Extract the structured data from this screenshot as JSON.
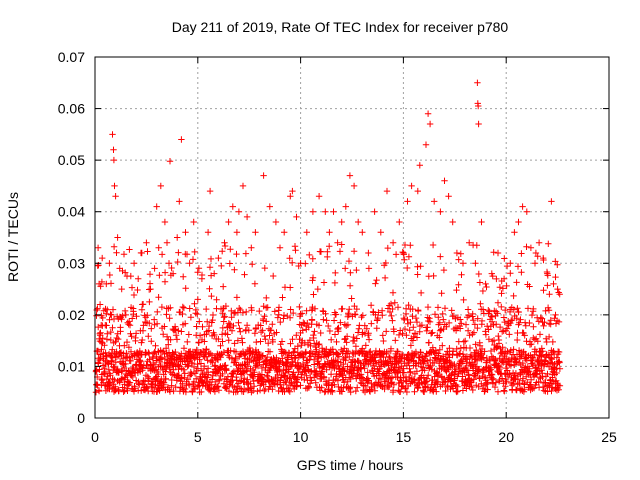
{
  "chart_data": {
    "type": "scatter",
    "title": "Day 211 of 2019, Rate Of TEC Index for receiver p780",
    "xlabel": "GPS time / hours",
    "ylabel": "ROTI / TECUs",
    "xlim": [
      0,
      25
    ],
    "ylim": [
      0,
      0.07
    ],
    "xticks": [
      0,
      5,
      10,
      15,
      20,
      25
    ],
    "yticks": [
      0,
      0.01,
      0.02,
      0.03,
      0.04,
      0.05,
      0.06,
      0.07
    ],
    "grid": true,
    "marker": "+",
    "colors": {
      "points": "#ff0000",
      "grid": "#a0a0a0",
      "axis": "#000000"
    },
    "series": [
      {
        "points": [
          [
            0.05,
            0.005
          ],
          [
            0.1,
            0.013
          ],
          [
            0.15,
            0.033
          ],
          [
            0.2,
            0.026
          ],
          [
            0.25,
            0.022
          ],
          [
            0.3,
            0.018
          ],
          [
            0.35,
            0.031
          ],
          [
            0.4,
            0.012
          ],
          [
            0.5,
            0.018
          ],
          [
            0.55,
            0.026
          ],
          [
            0.6,
            0.021
          ],
          [
            0.7,
            0.03
          ],
          [
            0.8,
            0.02
          ],
          [
            0.85,
            0.055
          ],
          [
            0.9,
            0.052
          ],
          [
            0.92,
            0.05
          ],
          [
            0.95,
            0.045
          ],
          [
            1.0,
            0.043
          ],
          [
            1.1,
            0.035
          ],
          [
            1.2,
            0.029
          ],
          [
            1.3,
            0.025
          ],
          [
            1.5,
            0.02
          ],
          [
            1.7,
            0.018
          ],
          [
            1.9,
            0.03
          ],
          [
            2.1,
            0.027
          ],
          [
            2.3,
            0.022
          ],
          [
            2.5,
            0.034
          ],
          [
            2.7,
            0.025
          ],
          [
            2.9,
            0.029
          ],
          [
            3.0,
            0.041
          ],
          [
            3.1,
            0.033
          ],
          [
            3.2,
            0.045
          ],
          [
            3.4,
            0.038
          ],
          [
            3.5,
            0.034
          ],
          [
            3.6,
            0.03
          ],
          [
            3.65,
            0.0498
          ],
          [
            3.8,
            0.028
          ],
          [
            4.0,
            0.035
          ],
          [
            4.1,
            0.042
          ],
          [
            4.2,
            0.054
          ],
          [
            4.4,
            0.036
          ],
          [
            4.6,
            0.03
          ],
          [
            4.8,
            0.038
          ],
          [
            5.0,
            0.023
          ],
          [
            5.2,
            0.027
          ],
          [
            5.5,
            0.036
          ],
          [
            5.6,
            0.044
          ],
          [
            5.8,
            0.028
          ],
          [
            6.0,
            0.031
          ],
          [
            6.3,
            0.034
          ],
          [
            6.5,
            0.038
          ],
          [
            6.7,
            0.041
          ],
          [
            6.9,
            0.036
          ],
          [
            7.0,
            0.04
          ],
          [
            7.2,
            0.045
          ],
          [
            7.4,
            0.039
          ],
          [
            7.6,
            0.033
          ],
          [
            7.8,
            0.036
          ],
          [
            8.2,
            0.047
          ],
          [
            8.5,
            0.041
          ],
          [
            8.8,
            0.038
          ],
          [
            9.0,
            0.033
          ],
          [
            9.2,
            0.036
          ],
          [
            9.5,
            0.043
          ],
          [
            9.6,
            0.044
          ],
          [
            9.8,
            0.039
          ],
          [
            10.0,
            0.03
          ],
          [
            10.3,
            0.036
          ],
          [
            10.6,
            0.04
          ],
          [
            10.9,
            0.043
          ],
          [
            11.2,
            0.04
          ],
          [
            11.4,
            0.036
          ],
          [
            11.6,
            0.04
          ],
          [
            11.8,
            0.034
          ],
          [
            12.0,
            0.038
          ],
          [
            12.2,
            0.041
          ],
          [
            12.4,
            0.047
          ],
          [
            12.6,
            0.045
          ],
          [
            12.8,
            0.038
          ],
          [
            13.0,
            0.036
          ],
          [
            13.3,
            0.032
          ],
          [
            13.6,
            0.04
          ],
          [
            13.9,
            0.036
          ],
          [
            14.2,
            0.044
          ],
          [
            14.5,
            0.034
          ],
          [
            14.8,
            0.038
          ],
          [
            15.2,
            0.042
          ],
          [
            15.4,
            0.045
          ],
          [
            15.7,
            0.044
          ],
          [
            15.8,
            0.049
          ],
          [
            16.1,
            0.053
          ],
          [
            16.2,
            0.059
          ],
          [
            16.3,
            0.057
          ],
          [
            16.5,
            0.042
          ],
          [
            16.8,
            0.04
          ],
          [
            17.0,
            0.046
          ],
          [
            17.2,
            0.043
          ],
          [
            17.4,
            0.038
          ],
          [
            17.6,
            0.032
          ],
          [
            17.9,
            0.03
          ],
          [
            18.2,
            0.034
          ],
          [
            18.5,
            0.03
          ],
          [
            18.6,
            0.065
          ],
          [
            18.62,
            0.061
          ],
          [
            18.64,
            0.0605
          ],
          [
            18.66,
            0.057
          ],
          [
            18.8,
            0.038
          ],
          [
            19.0,
            0.026
          ],
          [
            19.3,
            0.028
          ],
          [
            19.6,
            0.032
          ],
          [
            19.9,
            0.027
          ],
          [
            20.2,
            0.03
          ],
          [
            20.4,
            0.036
          ],
          [
            20.6,
            0.038
          ],
          [
            20.8,
            0.041
          ],
          [
            21.0,
            0.04
          ],
          [
            21.2,
            0.033
          ],
          [
            21.4,
            0.03
          ],
          [
            21.6,
            0.034
          ],
          [
            21.8,
            0.031
          ],
          [
            22.0,
            0.028
          ],
          [
            22.1,
            0.024
          ],
          [
            22.2,
            0.042
          ],
          [
            22.3,
            0.026
          ],
          [
            22.4,
            0.02
          ],
          [
            22.5,
            0.025
          ],
          [
            22.6,
            0.024
          ]
        ],
        "density": {
          "x_start": 0.05,
          "x_end": 22.6,
          "x_step": 0.025,
          "baseline": 0.009,
          "spread": 0.004,
          "min": 0.002,
          "upper_band": 0.014,
          "upper_spread": 0.009
        }
      }
    ]
  }
}
